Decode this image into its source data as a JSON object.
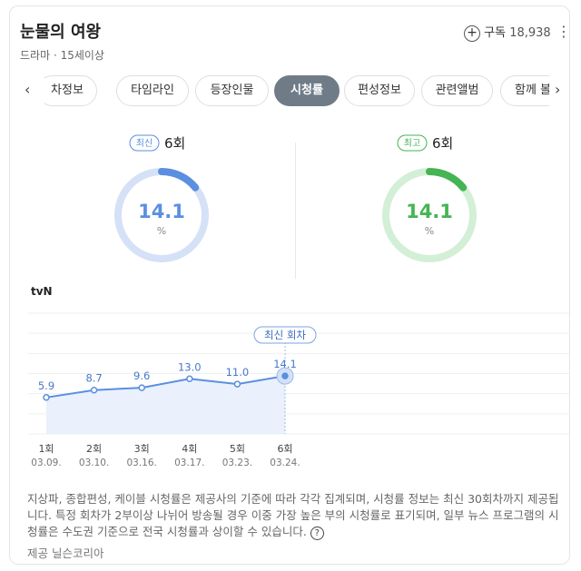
{
  "header": {
    "title": "눈물의 여왕",
    "genre": "드라마",
    "rating": "15세이상",
    "subscribe": "구독",
    "subscribers": "18,938"
  },
  "tabs": [
    "차정보",
    "타임라인",
    "등장인물",
    "시청률",
    "편성정보",
    "관련앨범",
    "함께 볼"
  ],
  "active_tab": 3,
  "summary": [
    {
      "badge": "최신",
      "episode": "6회",
      "value": 14.1,
      "unit": "%",
      "color": "#5b8fe0",
      "track": "#d5e1f7"
    },
    {
      "badge": "최고",
      "episode": "6회",
      "value": 14.1,
      "unit": "%",
      "color": "#45b553",
      "track": "#d3efd6"
    }
  ],
  "chart_data": {
    "type": "line",
    "title": "tvN",
    "categories": [
      "1회",
      "2회",
      "3회",
      "4회",
      "5회",
      "6회"
    ],
    "dates": [
      "03.09.",
      "03.10.",
      "03.16.",
      "03.17.",
      "03.23.",
      "03.24."
    ],
    "values": [
      5.9,
      8.7,
      9.6,
      13.0,
      11.0,
      14.1
    ],
    "value_labels": [
      "5.9",
      "8.7",
      "9.6",
      "13.0",
      "11.0",
      "14.1"
    ],
    "color": "#5b8fe0",
    "ylim": [
      -8,
      38
    ],
    "annotation": "최신 회차"
  },
  "footer": {
    "note": "지상파, 종합편성, 케이블 시청률은 제공사의 기준에 따라 각각 집계되며, 시청률 정보는 최신 30회차까지 제공됩니다. 특정 회차가 2부이상 나뉘어 방송될 경우 이중 가장 높은 부의 시청률로 표기되며, 일부 뉴스 프로그램의 시청률은 수도권 기준으로 전국 시청률과 상이할 수 있습니다.",
    "source_label": "제공",
    "source": "닐슨코리아"
  }
}
